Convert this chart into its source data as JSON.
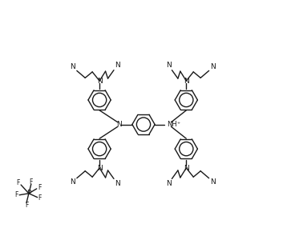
{
  "bg_color": "#ffffff",
  "line_color": "#1a1a1a",
  "line_width": 1.0,
  "font_size": 6.5,
  "figsize": [
    3.58,
    3.15
  ],
  "dpi": 100,
  "xlim": [
    0,
    9.0
  ],
  "ylim": [
    0,
    8.0
  ],
  "ring_R": 0.36,
  "ring_inner_r": 0.22
}
